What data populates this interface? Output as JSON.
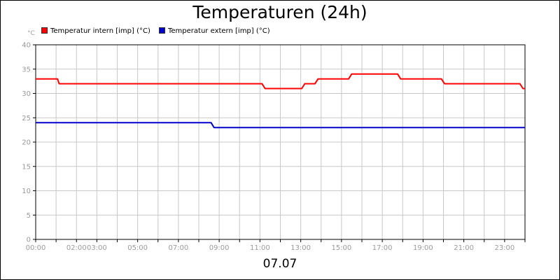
{
  "chart_data": {
    "type": "line",
    "title": "Temperaturen (24h)",
    "ylabel": "°C",
    "xlabel": "",
    "footer": "07.07",
    "x_unit": "hour of day",
    "xlim": [
      0,
      24
    ],
    "ylim": [
      0,
      40
    ],
    "y_ticks": [
      0,
      5,
      10,
      15,
      20,
      25,
      30,
      35,
      40
    ],
    "x_tick_labels": [
      {
        "hour": 0,
        "label": "00:00"
      },
      {
        "hour": 2,
        "label": "02:00"
      },
      {
        "hour": 3,
        "label": "03:00"
      },
      {
        "hour": 5,
        "label": "05:00"
      },
      {
        "hour": 7,
        "label": "07:00"
      },
      {
        "hour": 9,
        "label": "09:00"
      },
      {
        "hour": 11,
        "label": "11:00"
      },
      {
        "hour": 13,
        "label": "13:00"
      },
      {
        "hour": 15,
        "label": "15:00"
      },
      {
        "hour": 17,
        "label": "17:00"
      },
      {
        "hour": 19,
        "label": "19:00"
      },
      {
        "hour": 21,
        "label": "21:00"
      },
      {
        "hour": 23,
        "label": "23:00"
      }
    ],
    "grid": true,
    "legend_position": "top-left",
    "series": [
      {
        "name": "Temperatur intern [imp] (°C)",
        "color": "#ff0000",
        "points": [
          [
            0,
            33
          ],
          [
            1.07,
            33
          ],
          [
            1.15,
            32
          ],
          [
            11.1,
            32
          ],
          [
            11.25,
            31
          ],
          [
            13.05,
            31
          ],
          [
            13.2,
            32
          ],
          [
            13.7,
            32
          ],
          [
            13.85,
            33
          ],
          [
            15.35,
            33
          ],
          [
            15.5,
            34
          ],
          [
            17.75,
            34
          ],
          [
            17.9,
            33
          ],
          [
            19.9,
            33
          ],
          [
            20.05,
            32
          ],
          [
            23.75,
            32
          ],
          [
            23.9,
            31
          ],
          [
            24,
            31
          ]
        ]
      },
      {
        "name": "Temperatur extern [imp] (°C)",
        "color": "#0000cc",
        "points": [
          [
            0,
            24
          ],
          [
            8.6,
            24
          ],
          [
            8.75,
            23
          ],
          [
            24,
            23
          ]
        ]
      }
    ]
  }
}
